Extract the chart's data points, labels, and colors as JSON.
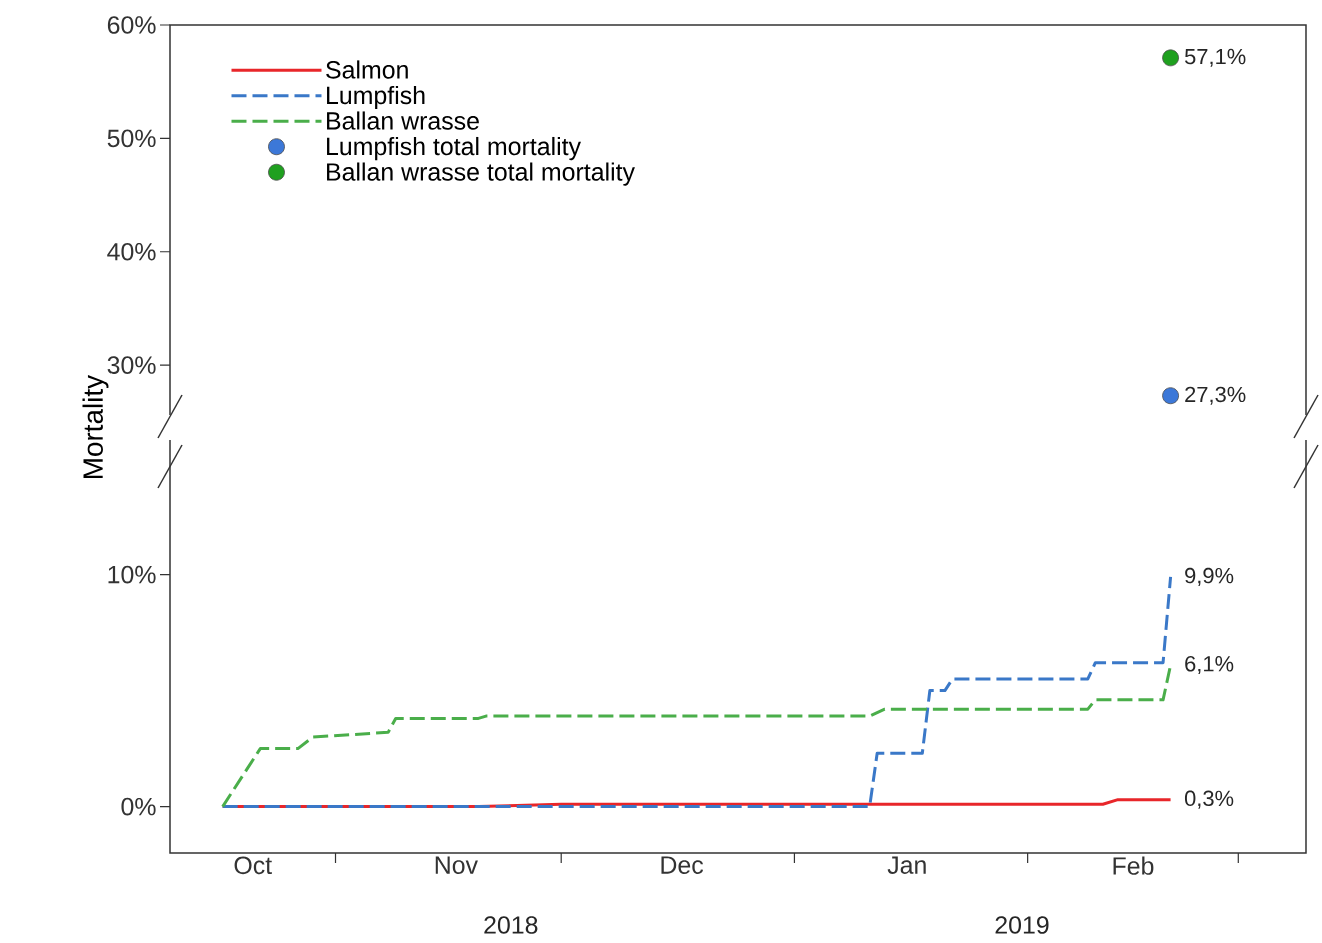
{
  "chart_data": [
    {
      "type": "scatter",
      "xlim": [
        "2018-10-10",
        "2019-03-10"
      ],
      "ylim": [
        25.6,
        60
      ],
      "yticks": [
        {
          "value": 30,
          "label": "30%"
        },
        {
          "value": 40,
          "label": "40%"
        },
        {
          "value": 50,
          "label": "50%"
        },
        {
          "value": 60,
          "label": "60%"
        }
      ],
      "tick_labels": "y",
      "legend": "top left",
      "series": [
        {
          "name": "Lumpfish total mortality",
          "color": "#3c78d8",
          "marker": "circle",
          "x": [
            "2019-02-20"
          ],
          "values": [
            27.3
          ],
          "value_labels": [
            "27,3%"
          ]
        },
        {
          "name": "Ballan wrasse total mortality",
          "color": "#1fa01f",
          "marker": "circle",
          "x": [
            "2019-02-20"
          ],
          "values": [
            57.1
          ],
          "value_labels": [
            "57,1%"
          ]
        }
      ]
    },
    {
      "type": "line",
      "ylabel": "Mortality",
      "xlim": [
        "2018-10-10",
        "2019-03-10"
      ],
      "ylim": [
        -2,
        15.8
      ],
      "yticks": [
        {
          "value": 0,
          "label": "0%"
        },
        {
          "value": 10,
          "label": "10%"
        }
      ],
      "xticks": [
        {
          "value": "2018-11-01",
          "label": null
        },
        {
          "value": "2018-12-01",
          "label": null
        },
        {
          "value": "2019-01-01",
          "label": null
        },
        {
          "value": "2019-02-01",
          "label": null
        },
        {
          "value": "2019-03-01",
          "label": null
        },
        {
          "value": "2018-10-21",
          "label": "Oct"
        },
        {
          "value": "2018-11-17",
          "label": "Nov"
        },
        {
          "value": "2018-12-17",
          "label": "Dec"
        },
        {
          "value": "2019-01-16",
          "label": "Jan"
        },
        {
          "value": "2019-02-15",
          "label": "Feb"
        }
      ],
      "annotations": [
        "2018",
        "2019"
      ],
      "series": [
        {
          "name": "Salmon",
          "color": "#e8262a",
          "line_style": "solid",
          "x": [
            "2018-10-17",
            "2018-11-20",
            "2018-12-01",
            "2019-02-11",
            "2019-02-13",
            "2019-02-20"
          ],
          "values": [
            0,
            0,
            0.1,
            0.1,
            0.3,
            0.3
          ],
          "value_labels": [
            null,
            null,
            null,
            null,
            null,
            "0,3%"
          ]
        },
        {
          "name": "Lumpfish",
          "color": "#3a78c8",
          "line_style": "dashed",
          "x": [
            "2018-10-17",
            "2019-01-11",
            "2019-01-12",
            "2019-01-18",
            "2019-01-19",
            "2019-01-21",
            "2019-01-22",
            "2019-02-09",
            "2019-02-10",
            "2019-02-19",
            "2019-02-20"
          ],
          "values": [
            0,
            0,
            2.3,
            2.3,
            5.0,
            5.0,
            5.5,
            5.5,
            6.2,
            6.2,
            9.9
          ],
          "value_labels": [
            null,
            null,
            null,
            null,
            null,
            null,
            null,
            null,
            null,
            null,
            "9,9%"
          ]
        },
        {
          "name": "Ballan wrasse",
          "color": "#4aae4a",
          "line_style": "dashed",
          "x": [
            "2018-10-17",
            "2018-10-22",
            "2018-10-27",
            "2018-10-29",
            "2018-11-08",
            "2018-11-09",
            "2018-11-20",
            "2018-11-21",
            "2019-01-11",
            "2019-01-13",
            "2019-02-09",
            "2019-02-10",
            "2019-02-19",
            "2019-02-20"
          ],
          "values": [
            0,
            2.5,
            2.5,
            3.0,
            3.2,
            3.8,
            3.8,
            3.9,
            3.9,
            4.2,
            4.2,
            4.6,
            4.6,
            6.1
          ],
          "value_labels": [
            null,
            null,
            null,
            null,
            null,
            null,
            null,
            null,
            null,
            null,
            null,
            null,
            null,
            "6,1%"
          ]
        }
      ]
    }
  ]
}
